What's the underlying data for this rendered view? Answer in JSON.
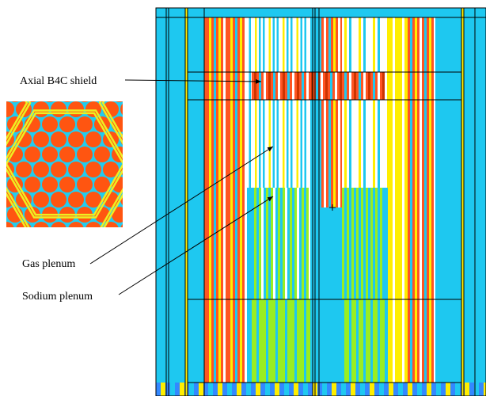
{
  "annotations": [
    "Axial B4C shield",
    "Gas plenum",
    "Sodium plenum"
  ]
}
